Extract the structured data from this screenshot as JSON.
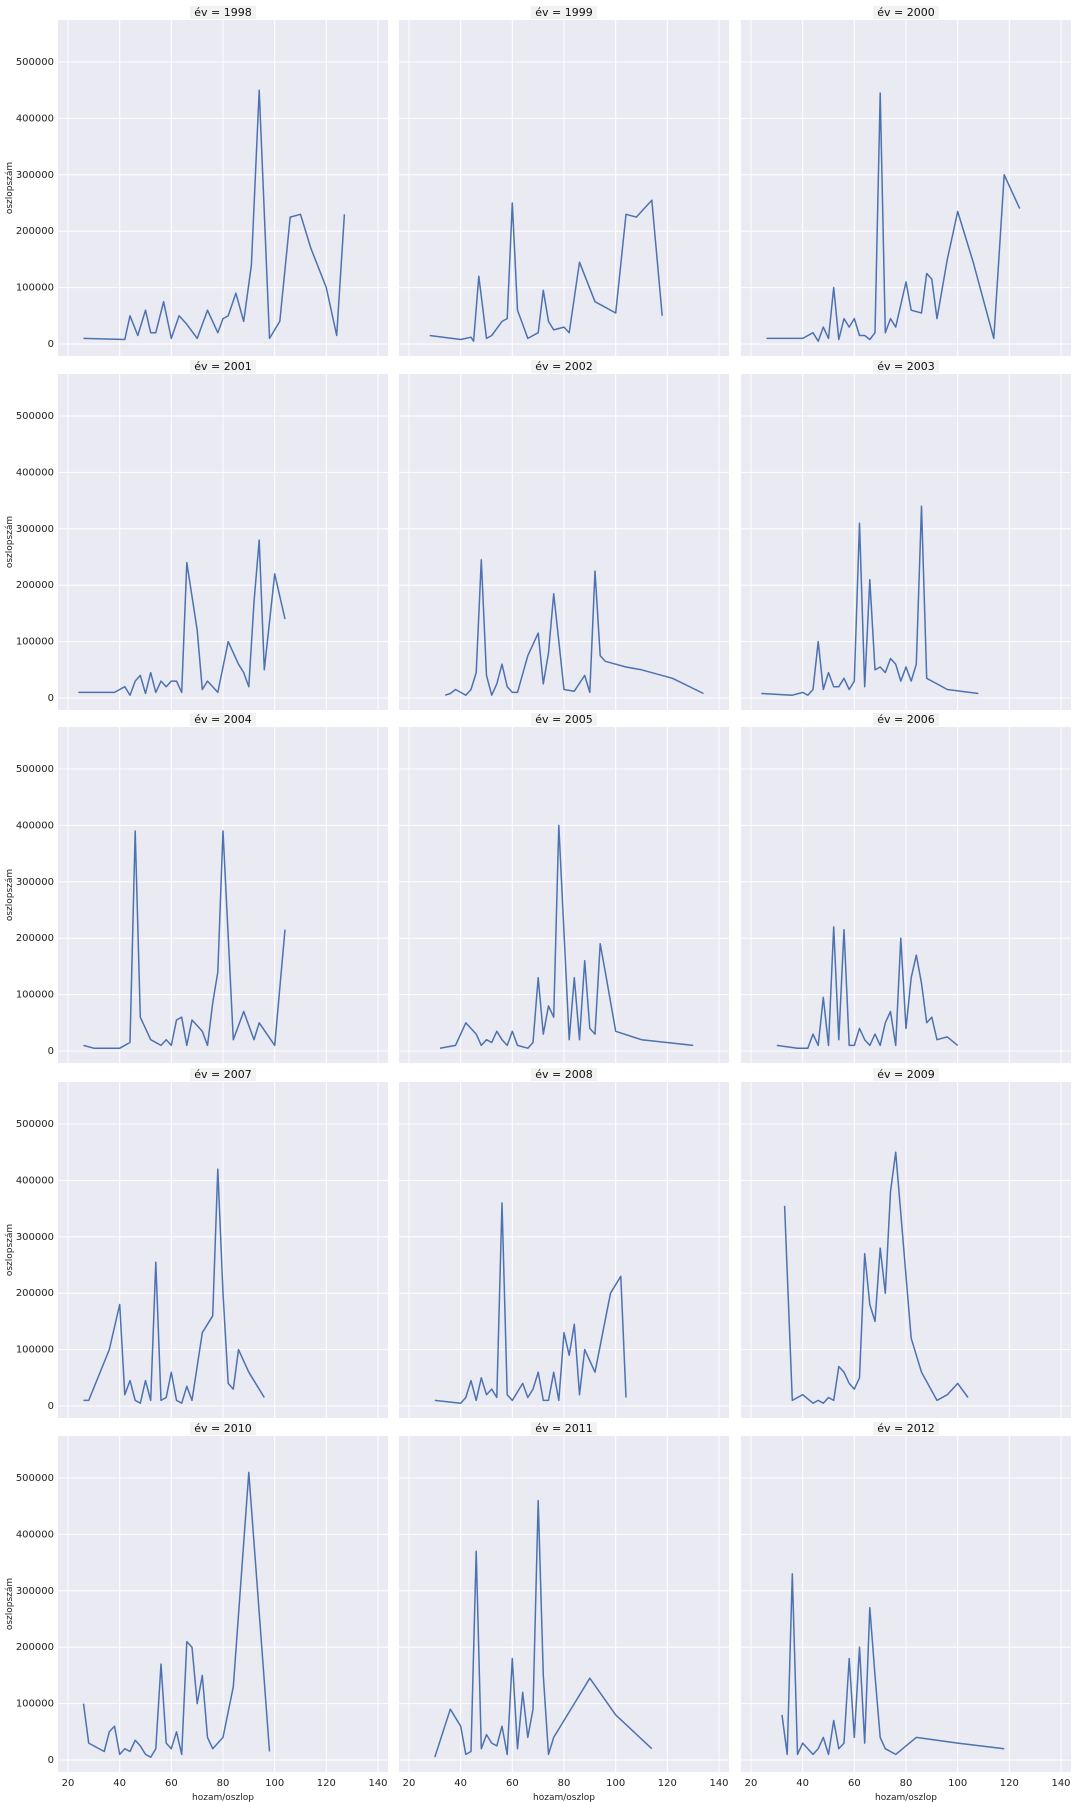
{
  "figure": {
    "y_axis_label": "oszlopszám",
    "x_axis_label": "hozam/oszlop"
  },
  "chart_data": {
    "type": "line",
    "facet_variable": "év",
    "xlim": [
      20,
      140
    ],
    "ylim": [
      0,
      500000
    ],
    "x_ticks": [
      20,
      40,
      60,
      80,
      100,
      120,
      140
    ],
    "y_ticks": [
      0,
      100000,
      200000,
      300000,
      400000,
      500000
    ],
    "grid": true,
    "line_color": "#4c72b0",
    "panel_background": "#eaeaf2",
    "facets": [
      {
        "title": "év = 1998",
        "x": [
          26,
          42,
          44,
          47,
          50,
          52,
          54,
          57,
          60,
          63,
          66,
          70,
          74,
          78,
          80,
          82,
          85,
          88,
          91,
          94,
          98,
          102,
          106,
          110,
          114,
          120,
          124,
          127
        ],
        "y": [
          10000,
          8000,
          50000,
          15000,
          60000,
          20000,
          20000,
          75000,
          10000,
          50000,
          35000,
          10000,
          60000,
          20000,
          45000,
          50000,
          90000,
          40000,
          140000,
          450000,
          10000,
          40000,
          225000,
          230000,
          170000,
          100000,
          15000,
          230000
        ]
      },
      {
        "title": "év = 1999",
        "x": [
          28,
          40,
          44,
          45,
          47,
          50,
          52,
          56,
          58,
          60,
          62,
          64,
          66,
          70,
          72,
          74,
          76,
          80,
          82,
          86,
          92,
          100,
          104,
          108,
          114,
          118
        ],
        "y": [
          15000,
          8000,
          12000,
          5000,
          120000,
          10000,
          15000,
          40000,
          45000,
          250000,
          60000,
          35000,
          10000,
          20000,
          95000,
          40000,
          25000,
          30000,
          20000,
          145000,
          75000,
          55000,
          230000,
          225000,
          255000,
          50000
        ]
      },
      {
        "title": "év = 2000",
        "x": [
          26,
          40,
          44,
          46,
          48,
          50,
          52,
          54,
          56,
          58,
          60,
          62,
          64,
          66,
          68,
          70,
          72,
          74,
          76,
          80,
          82,
          86,
          88,
          90,
          92,
          96,
          100,
          106,
          114,
          118,
          124
        ],
        "y": [
          10000,
          10000,
          20000,
          5000,
          30000,
          10000,
          100000,
          8000,
          45000,
          30000,
          45000,
          15000,
          15000,
          8000,
          20000,
          445000,
          20000,
          45000,
          30000,
          110000,
          60000,
          55000,
          125000,
          115000,
          45000,
          150000,
          235000,
          145000,
          10000,
          300000,
          240000
        ]
      },
      {
        "title": "év = 2001",
        "x": [
          24,
          38,
          42,
          44,
          46,
          48,
          50,
          52,
          54,
          56,
          58,
          60,
          62,
          64,
          66,
          70,
          72,
          74,
          76,
          78,
          82,
          86,
          88,
          90,
          92,
          94,
          96,
          100,
          104
        ],
        "y": [
          10000,
          10000,
          20000,
          5000,
          30000,
          40000,
          8000,
          45000,
          10000,
          30000,
          20000,
          30000,
          30000,
          10000,
          240000,
          120000,
          15000,
          30000,
          20000,
          10000,
          100000,
          60000,
          45000,
          20000,
          170000,
          280000,
          50000,
          220000,
          140000
        ]
      },
      {
        "title": "év = 2002",
        "x": [
          34,
          36,
          38,
          40,
          42,
          44,
          46,
          48,
          50,
          52,
          54,
          56,
          58,
          60,
          62,
          66,
          70,
          72,
          74,
          76,
          80,
          84,
          88,
          90,
          92,
          94,
          96,
          100,
          104,
          110,
          122,
          134
        ],
        "y": [
          5000,
          8000,
          15000,
          10000,
          5000,
          15000,
          45000,
          245000,
          40000,
          5000,
          25000,
          60000,
          20000,
          10000,
          10000,
          75000,
          115000,
          25000,
          80000,
          185000,
          15000,
          12000,
          40000,
          10000,
          225000,
          75000,
          65000,
          60000,
          55000,
          50000,
          35000,
          8000
        ]
      },
      {
        "title": "év = 2003",
        "x": [
          24,
          36,
          40,
          42,
          44,
          46,
          48,
          50,
          52,
          54,
          56,
          58,
          60,
          62,
          64,
          66,
          68,
          70,
          72,
          74,
          76,
          78,
          80,
          82,
          84,
          86,
          88,
          92,
          96,
          108
        ],
        "y": [
          8000,
          5000,
          10000,
          5000,
          15000,
          100000,
          15000,
          45000,
          20000,
          20000,
          35000,
          15000,
          30000,
          310000,
          20000,
          210000,
          50000,
          55000,
          45000,
          70000,
          60000,
          30000,
          55000,
          30000,
          60000,
          340000,
          35000,
          25000,
          15000,
          8000
        ]
      },
      {
        "title": "év = 2004",
        "x": [
          26,
          30,
          36,
          40,
          44,
          46,
          48,
          50,
          52,
          56,
          58,
          60,
          62,
          64,
          66,
          68,
          72,
          74,
          76,
          78,
          80,
          84,
          88,
          92,
          94,
          100,
          104
        ],
        "y": [
          10000,
          5000,
          5000,
          5000,
          15000,
          390000,
          60000,
          40000,
          20000,
          10000,
          20000,
          10000,
          55000,
          60000,
          10000,
          55000,
          35000,
          10000,
          85000,
          140000,
          390000,
          20000,
          70000,
          20000,
          50000,
          10000,
          215000
        ]
      },
      {
        "title": "év = 2005",
        "x": [
          32,
          38,
          42,
          46,
          48,
          50,
          52,
          54,
          56,
          58,
          60,
          62,
          66,
          68,
          70,
          72,
          74,
          76,
          78,
          80,
          82,
          84,
          86,
          88,
          90,
          92,
          94,
          96,
          100,
          110,
          130
        ],
        "y": [
          5000,
          10000,
          50000,
          30000,
          10000,
          20000,
          15000,
          35000,
          20000,
          10000,
          35000,
          10000,
          5000,
          15000,
          130000,
          30000,
          80000,
          60000,
          400000,
          210000,
          20000,
          130000,
          20000,
          160000,
          40000,
          30000,
          190000,
          140000,
          35000,
          20000,
          10000
        ]
      },
      {
        "title": "év = 2006",
        "x": [
          30,
          38,
          42,
          44,
          46,
          48,
          50,
          52,
          54,
          56,
          58,
          60,
          62,
          64,
          66,
          68,
          70,
          72,
          74,
          76,
          78,
          80,
          82,
          84,
          86,
          88,
          90,
          92,
          96,
          100
        ],
        "y": [
          10000,
          5000,
          5000,
          30000,
          10000,
          95000,
          10000,
          220000,
          20000,
          215000,
          10000,
          10000,
          40000,
          20000,
          10000,
          30000,
          10000,
          50000,
          70000,
          10000,
          200000,
          40000,
          130000,
          170000,
          120000,
          50000,
          60000,
          20000,
          25000,
          10000
        ]
      },
      {
        "title": "év = 2007",
        "x": [
          26,
          28,
          36,
          40,
          42,
          44,
          46,
          48,
          50,
          52,
          54,
          56,
          58,
          60,
          62,
          64,
          66,
          68,
          72,
          76,
          78,
          80,
          82,
          84,
          86,
          90,
          96
        ],
        "y": [
          10000,
          10000,
          100000,
          180000,
          20000,
          45000,
          10000,
          5000,
          45000,
          10000,
          255000,
          10000,
          15000,
          60000,
          10000,
          5000,
          35000,
          10000,
          130000,
          160000,
          420000,
          200000,
          40000,
          30000,
          100000,
          60000,
          15000
        ]
      },
      {
        "title": "év = 2008",
        "x": [
          30,
          40,
          42,
          44,
          46,
          48,
          50,
          52,
          54,
          56,
          58,
          60,
          62,
          64,
          66,
          68,
          70,
          72,
          74,
          76,
          78,
          80,
          82,
          84,
          86,
          88,
          92,
          98,
          102,
          104
        ],
        "y": [
          10000,
          5000,
          15000,
          45000,
          10000,
          50000,
          20000,
          30000,
          15000,
          360000,
          20000,
          10000,
          25000,
          40000,
          15000,
          30000,
          60000,
          10000,
          10000,
          60000,
          10000,
          130000,
          90000,
          145000,
          20000,
          100000,
          60000,
          200000,
          230000,
          15000
        ]
      },
      {
        "title": "év = 2009",
        "x": [
          33,
          36,
          40,
          44,
          46,
          48,
          50,
          52,
          54,
          56,
          58,
          60,
          62,
          64,
          66,
          68,
          70,
          72,
          74,
          76,
          82,
          86,
          92,
          96,
          100,
          104
        ],
        "y": [
          355000,
          10000,
          20000,
          5000,
          10000,
          5000,
          15000,
          10000,
          70000,
          60000,
          40000,
          30000,
          50000,
          270000,
          180000,
          150000,
          280000,
          200000,
          380000,
          450000,
          120000,
          60000,
          10000,
          20000,
          40000,
          15000
        ]
      },
      {
        "title": "év = 2010",
        "x": [
          26,
          28,
          34,
          36,
          38,
          40,
          42,
          44,
          46,
          48,
          50,
          52,
          54,
          56,
          58,
          60,
          62,
          64,
          66,
          68,
          70,
          72,
          74,
          76,
          80,
          84,
          90,
          98
        ],
        "y": [
          100000,
          30000,
          15000,
          50000,
          60000,
          10000,
          20000,
          15000,
          35000,
          25000,
          10000,
          5000,
          20000,
          170000,
          30000,
          20000,
          50000,
          10000,
          210000,
          200000,
          100000,
          150000,
          40000,
          20000,
          40000,
          130000,
          510000,
          15000
        ]
      },
      {
        "title": "év = 2011",
        "x": [
          30,
          36,
          40,
          42,
          44,
          46,
          48,
          50,
          52,
          54,
          56,
          58,
          60,
          62,
          64,
          66,
          68,
          70,
          72,
          74,
          76,
          80,
          84,
          90,
          100,
          114
        ],
        "y": [
          5000,
          90000,
          60000,
          10000,
          15000,
          370000,
          20000,
          45000,
          30000,
          25000,
          60000,
          10000,
          180000,
          20000,
          120000,
          40000,
          90000,
          460000,
          150000,
          10000,
          40000,
          70000,
          100000,
          145000,
          80000,
          20000
        ]
      },
      {
        "title": "év = 2012",
        "x": [
          32,
          34,
          36,
          38,
          40,
          42,
          44,
          46,
          48,
          50,
          52,
          54,
          56,
          58,
          60,
          62,
          64,
          66,
          68,
          70,
          72,
          76,
          84,
          100,
          118
        ],
        "y": [
          80000,
          10000,
          330000,
          10000,
          30000,
          20000,
          10000,
          20000,
          40000,
          10000,
          70000,
          20000,
          30000,
          180000,
          40000,
          200000,
          30000,
          270000,
          150000,
          40000,
          20000,
          10000,
          40000,
          30000,
          20000
        ]
      }
    ]
  }
}
